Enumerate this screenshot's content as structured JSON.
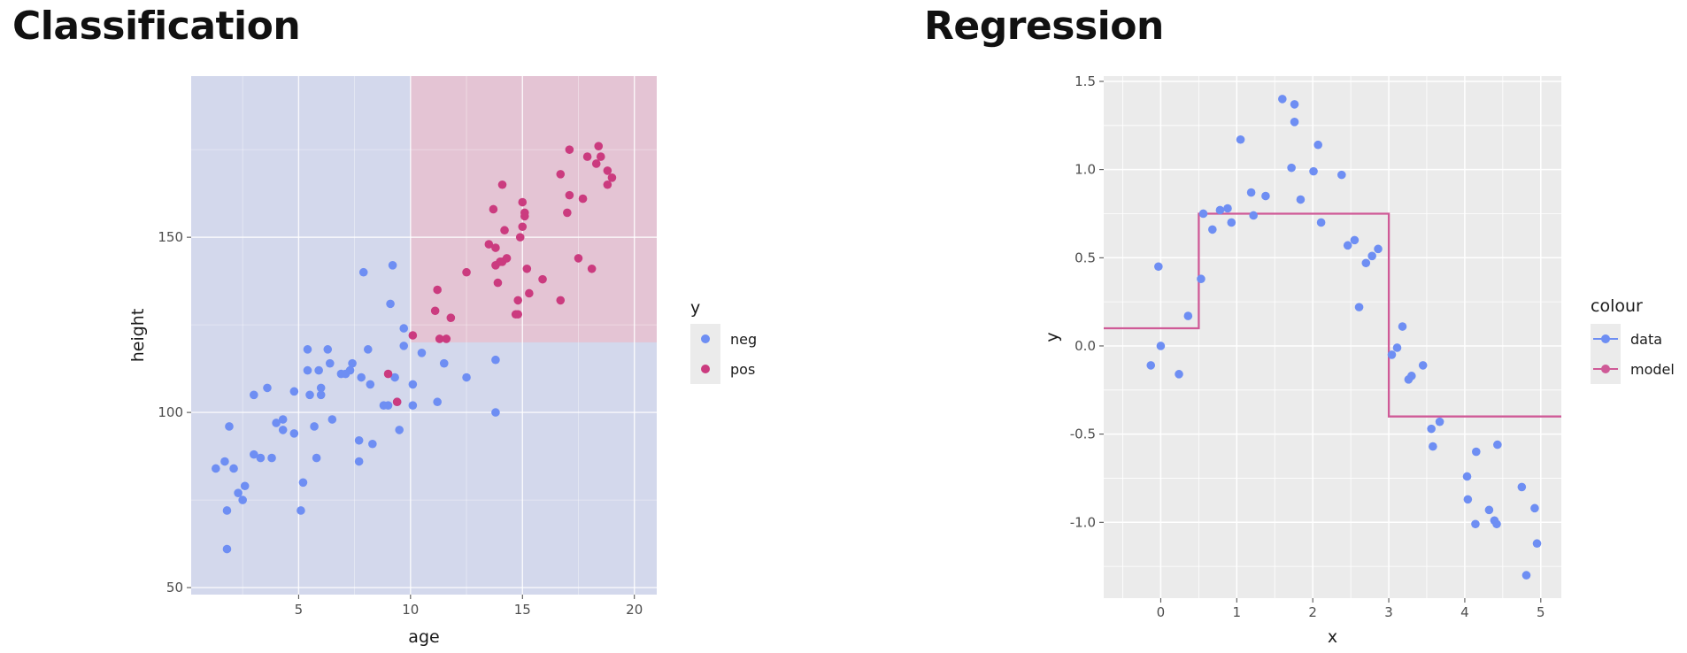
{
  "titles": {
    "left": "Classification",
    "right": "Regression"
  },
  "colors": {
    "neg": "#6e8ef3",
    "pos": "#cb3b7f",
    "data": "#6e8ef3",
    "model": "#cf5a97",
    "region_neg": "#d3d8ec",
    "region_pos": "#e4c4d4",
    "panel_bg": "#ebebeb",
    "grid": "#ffffff"
  },
  "chart_data": [
    {
      "type": "scatter",
      "title": "Classification",
      "xlabel": "age",
      "ylabel": "height",
      "xlim": [
        0.2,
        21.0
      ],
      "ylim": [
        48,
        196
      ],
      "xticks": [
        5,
        10,
        15,
        20
      ],
      "yticks": [
        50,
        100,
        150
      ],
      "grid": true,
      "legend": {
        "title": "y",
        "placement": "right",
        "entries": [
          "neg",
          "pos"
        ]
      },
      "decision_region": {
        "pos_if": "age > 10 and height > 120",
        "age_split": 10,
        "height_split": 120
      },
      "series": [
        {
          "name": "neg",
          "points": [
            [
              1.3,
              84
            ],
            [
              1.7,
              86
            ],
            [
              1.8,
              72
            ],
            [
              1.8,
              61
            ],
            [
              1.9,
              96
            ],
            [
              2.1,
              84
            ],
            [
              2.3,
              77
            ],
            [
              2.5,
              75
            ],
            [
              2.6,
              79
            ],
            [
              3.0,
              88
            ],
            [
              3.0,
              105
            ],
            [
              3.3,
              87
            ],
            [
              3.6,
              107
            ],
            [
              3.8,
              87
            ],
            [
              4.0,
              97
            ],
            [
              4.3,
              98
            ],
            [
              4.3,
              95
            ],
            [
              4.8,
              106
            ],
            [
              4.8,
              94
            ],
            [
              5.1,
              72
            ],
            [
              5.2,
              80
            ],
            [
              5.4,
              118
            ],
            [
              5.4,
              112
            ],
            [
              5.5,
              105
            ],
            [
              5.7,
              96
            ],
            [
              5.8,
              87
            ],
            [
              5.9,
              112
            ],
            [
              6.0,
              105
            ],
            [
              6.0,
              107
            ],
            [
              6.3,
              118
            ],
            [
              6.4,
              114
            ],
            [
              6.5,
              98
            ],
            [
              6.9,
              111
            ],
            [
              7.1,
              111
            ],
            [
              7.3,
              112
            ],
            [
              7.4,
              114
            ],
            [
              7.7,
              86
            ],
            [
              7.7,
              92
            ],
            [
              7.8,
              110
            ],
            [
              7.9,
              140
            ],
            [
              8.1,
              118
            ],
            [
              8.2,
              108
            ],
            [
              8.3,
              91
            ],
            [
              8.8,
              102
            ],
            [
              9.0,
              102
            ],
            [
              9.1,
              131
            ],
            [
              9.2,
              142
            ],
            [
              9.3,
              110
            ],
            [
              9.4,
              103
            ],
            [
              9.5,
              95
            ],
            [
              9.7,
              124
            ],
            [
              9.7,
              119
            ],
            [
              10.1,
              102
            ],
            [
              10.1,
              108
            ],
            [
              10.5,
              117
            ],
            [
              11.2,
              103
            ],
            [
              11.5,
              114
            ],
            [
              12.5,
              110
            ],
            [
              13.8,
              115
            ],
            [
              13.8,
              100
            ]
          ]
        },
        {
          "name": "pos",
          "points": [
            [
              9.0,
              111
            ],
            [
              9.4,
              103
            ],
            [
              10.1,
              122
            ],
            [
              11.1,
              129
            ],
            [
              11.2,
              135
            ],
            [
              11.3,
              121
            ],
            [
              11.6,
              121
            ],
            [
              11.8,
              127
            ],
            [
              12.5,
              140
            ],
            [
              13.5,
              148
            ],
            [
              13.7,
              158
            ],
            [
              13.8,
              147
            ],
            [
              13.8,
              142
            ],
            [
              13.9,
              137
            ],
            [
              14.0,
              143
            ],
            [
              14.1,
              165
            ],
            [
              14.1,
              143
            ],
            [
              14.2,
              152
            ],
            [
              14.3,
              144
            ],
            [
              14.7,
              128
            ],
            [
              14.8,
              132
            ],
            [
              14.8,
              128
            ],
            [
              14.9,
              150
            ],
            [
              15.0,
              153
            ],
            [
              15.0,
              160
            ],
            [
              15.1,
              156
            ],
            [
              15.1,
              157
            ],
            [
              15.2,
              141
            ],
            [
              15.3,
              134
            ],
            [
              15.9,
              138
            ],
            [
              16.7,
              168
            ],
            [
              16.7,
              132
            ],
            [
              17.0,
              157
            ],
            [
              17.1,
              175
            ],
            [
              17.1,
              162
            ],
            [
              17.5,
              144
            ],
            [
              17.7,
              161
            ],
            [
              17.9,
              173
            ],
            [
              18.1,
              141
            ],
            [
              18.3,
              171
            ],
            [
              18.4,
              176
            ],
            [
              18.5,
              173
            ],
            [
              18.8,
              165
            ],
            [
              18.8,
              169
            ],
            [
              19.0,
              167
            ]
          ]
        }
      ]
    },
    {
      "type": "line",
      "title": "Regression",
      "xlabel": "x",
      "ylabel": "y",
      "xlim": [
        -0.75,
        5.27
      ],
      "ylim": [
        -1.43,
        1.53
      ],
      "xticks": [
        0,
        1,
        2,
        3,
        4,
        5
      ],
      "yticks": [
        -1.0,
        -0.5,
        0.0,
        0.5,
        1.0,
        1.5
      ],
      "ytick_labels": [
        "-1.0",
        "-0.5",
        "0.0",
        "0.5",
        "1.0",
        "1.5"
      ],
      "grid": true,
      "legend": {
        "title": "colour",
        "placement": "right",
        "entries": [
          "data",
          "model"
        ]
      },
      "series": [
        {
          "name": "data",
          "kind": "points",
          "points": [
            [
              -0.13,
              -0.11
            ],
            [
              -0.03,
              0.45
            ],
            [
              0.0,
              0.0
            ],
            [
              0.24,
              -0.16
            ],
            [
              0.36,
              0.17
            ],
            [
              0.53,
              0.38
            ],
            [
              0.56,
              0.75
            ],
            [
              0.68,
              0.66
            ],
            [
              0.78,
              0.77
            ],
            [
              0.88,
              0.78
            ],
            [
              0.93,
              0.7
            ],
            [
              1.05,
              1.17
            ],
            [
              1.19,
              0.87
            ],
            [
              1.22,
              0.74
            ],
            [
              1.38,
              0.85
            ],
            [
              1.6,
              1.4
            ],
            [
              1.72,
              1.01
            ],
            [
              1.76,
              1.37
            ],
            [
              1.76,
              1.27
            ],
            [
              1.84,
              0.83
            ],
            [
              2.01,
              0.99
            ],
            [
              2.07,
              1.14
            ],
            [
              2.11,
              0.7
            ],
            [
              2.38,
              0.97
            ],
            [
              2.46,
              0.57
            ],
            [
              2.55,
              0.6
            ],
            [
              2.61,
              0.22
            ],
            [
              2.7,
              0.47
            ],
            [
              2.78,
              0.51
            ],
            [
              2.86,
              0.55
            ],
            [
              3.04,
              -0.05
            ],
            [
              3.11,
              -0.01
            ],
            [
              3.18,
              0.11
            ],
            [
              3.26,
              -0.19
            ],
            [
              3.3,
              -0.17
            ],
            [
              3.45,
              -0.11
            ],
            [
              3.56,
              -0.47
            ],
            [
              3.58,
              -0.57
            ],
            [
              3.67,
              -0.43
            ],
            [
              4.03,
              -0.74
            ],
            [
              4.04,
              -0.87
            ],
            [
              4.14,
              -1.01
            ],
            [
              4.15,
              -0.6
            ],
            [
              4.32,
              -0.93
            ],
            [
              4.39,
              -0.99
            ],
            [
              4.42,
              -1.01
            ],
            [
              4.43,
              -0.56
            ],
            [
              4.75,
              -0.8
            ],
            [
              4.81,
              -1.3
            ],
            [
              4.92,
              -0.92
            ],
            [
              4.95,
              -1.12
            ]
          ]
        },
        {
          "name": "model",
          "kind": "step",
          "points": [
            [
              -0.75,
              0.1
            ],
            [
              0.5,
              0.1
            ],
            [
              0.5,
              0.75
            ],
            [
              3.0,
              0.75
            ],
            [
              3.0,
              -0.4
            ],
            [
              5.27,
              -0.4
            ]
          ]
        }
      ]
    }
  ]
}
